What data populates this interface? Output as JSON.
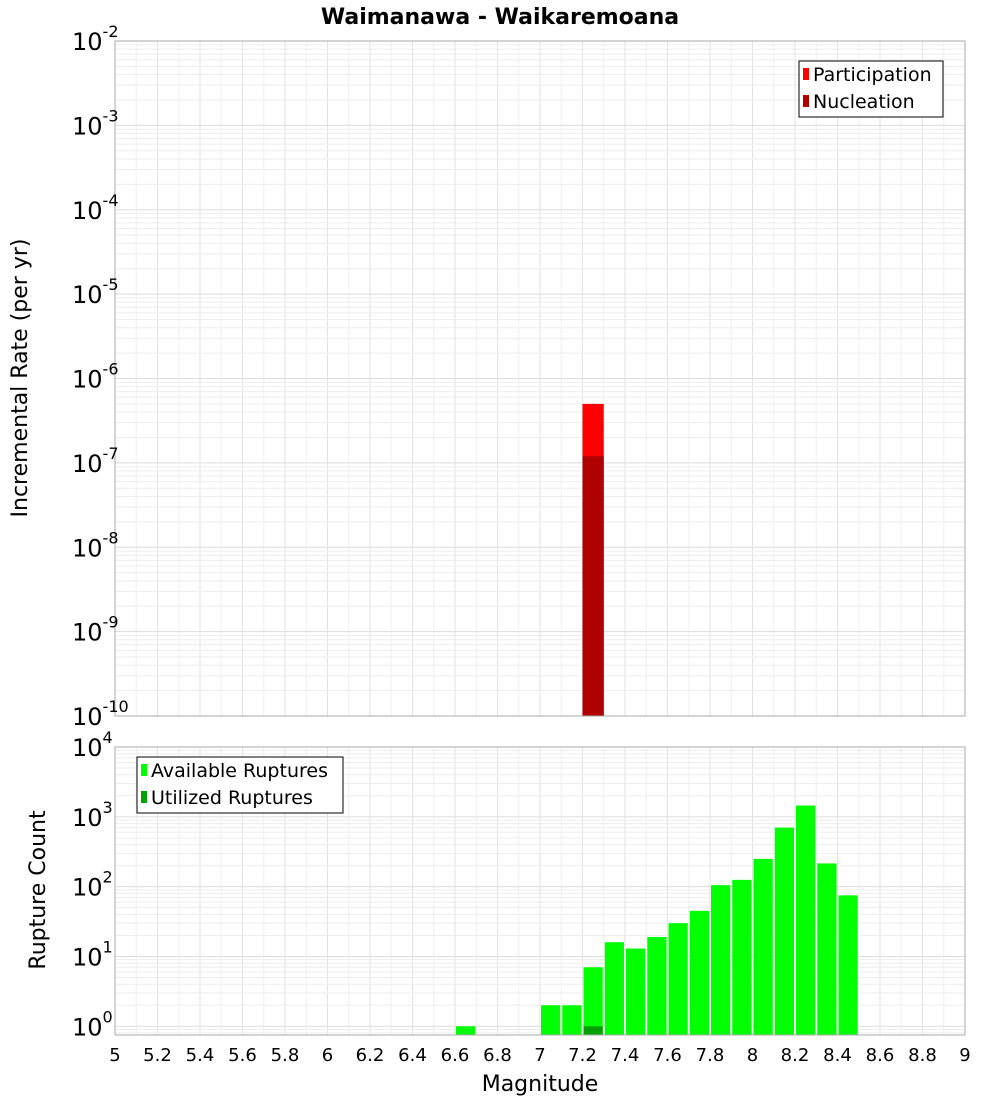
{
  "chart_data": [
    {
      "type": "bar",
      "title": "Waimanawa - Waikaremoana",
      "xlabel": "",
      "ylabel": "Incremental Rate (per yr)",
      "xlim": [
        5,
        9
      ],
      "ylim": [
        1e-10,
        0.01
      ],
      "yscale": "log",
      "grid": true,
      "legend": {
        "position": "top-right",
        "entries": [
          "Participation",
          "Nucleation"
        ]
      },
      "bin_width": 0.1,
      "series": [
        {
          "name": "Participation",
          "color": "#ff0000",
          "points": [
            {
              "x": 7.25,
              "y": 5e-07
            }
          ]
        },
        {
          "name": "Nucleation",
          "color": "#b00000",
          "points": [
            {
              "x": 7.25,
              "y": 1.2e-07
            }
          ]
        }
      ],
      "y_ticks": [
        {
          "value": 1e-10,
          "base": "10",
          "exp": "-10"
        },
        {
          "value": 1e-09,
          "base": "10",
          "exp": "-9"
        },
        {
          "value": 1e-08,
          "base": "10",
          "exp": "-8"
        },
        {
          "value": 1e-07,
          "base": "10",
          "exp": "-7"
        },
        {
          "value": 1e-06,
          "base": "10",
          "exp": "-6"
        },
        {
          "value": 1e-05,
          "base": "10",
          "exp": "-5"
        },
        {
          "value": 0.0001,
          "base": "10",
          "exp": "-4"
        },
        {
          "value": 0.001,
          "base": "10",
          "exp": "-3"
        },
        {
          "value": 0.01,
          "base": "10",
          "exp": "-2"
        }
      ]
    },
    {
      "type": "bar",
      "title": "",
      "xlabel": "Magnitude",
      "ylabel": "Rupture Count",
      "xlim": [
        5,
        9
      ],
      "ylim": [
        0.75,
        10000
      ],
      "yscale": "log",
      "grid": true,
      "legend": {
        "position": "top-left",
        "entries": [
          "Available Ruptures",
          "Utilized Ruptures"
        ]
      },
      "bin_width": 0.1,
      "series": [
        {
          "name": "Available Ruptures",
          "color": "#00ff00",
          "points": [
            {
              "x": 6.65,
              "y": 1
            },
            {
              "x": 7.05,
              "y": 2
            },
            {
              "x": 7.15,
              "y": 2
            },
            {
              "x": 7.25,
              "y": 7
            },
            {
              "x": 7.35,
              "y": 16
            },
            {
              "x": 7.45,
              "y": 13
            },
            {
              "x": 7.55,
              "y": 19
            },
            {
              "x": 7.65,
              "y": 30
            },
            {
              "x": 7.75,
              "y": 45
            },
            {
              "x": 7.85,
              "y": 105
            },
            {
              "x": 7.95,
              "y": 125
            },
            {
              "x": 8.05,
              "y": 250
            },
            {
              "x": 8.15,
              "y": 700
            },
            {
              "x": 8.25,
              "y": 1450
            },
            {
              "x": 8.35,
              "y": 215
            },
            {
              "x": 8.45,
              "y": 75
            }
          ]
        },
        {
          "name": "Utilized Ruptures",
          "color": "#00a000",
          "points": [
            {
              "x": 7.25,
              "y": 1
            }
          ]
        }
      ],
      "x_ticks": [
        "5",
        "5.2",
        "5.4",
        "5.6",
        "5.8",
        "6",
        "6.2",
        "6.4",
        "6.6",
        "6.8",
        "7",
        "7.2",
        "7.4",
        "7.6",
        "7.8",
        "8",
        "8.2",
        "8.4",
        "8.6",
        "8.8",
        "9"
      ],
      "y_ticks": [
        {
          "value": 1,
          "base": "10",
          "exp": "0"
        },
        {
          "value": 10,
          "base": "10",
          "exp": "1"
        },
        {
          "value": 100,
          "base": "10",
          "exp": "2"
        },
        {
          "value": 1000,
          "base": "10",
          "exp": "3"
        },
        {
          "value": 10000,
          "base": "10",
          "exp": "4"
        }
      ]
    }
  ]
}
